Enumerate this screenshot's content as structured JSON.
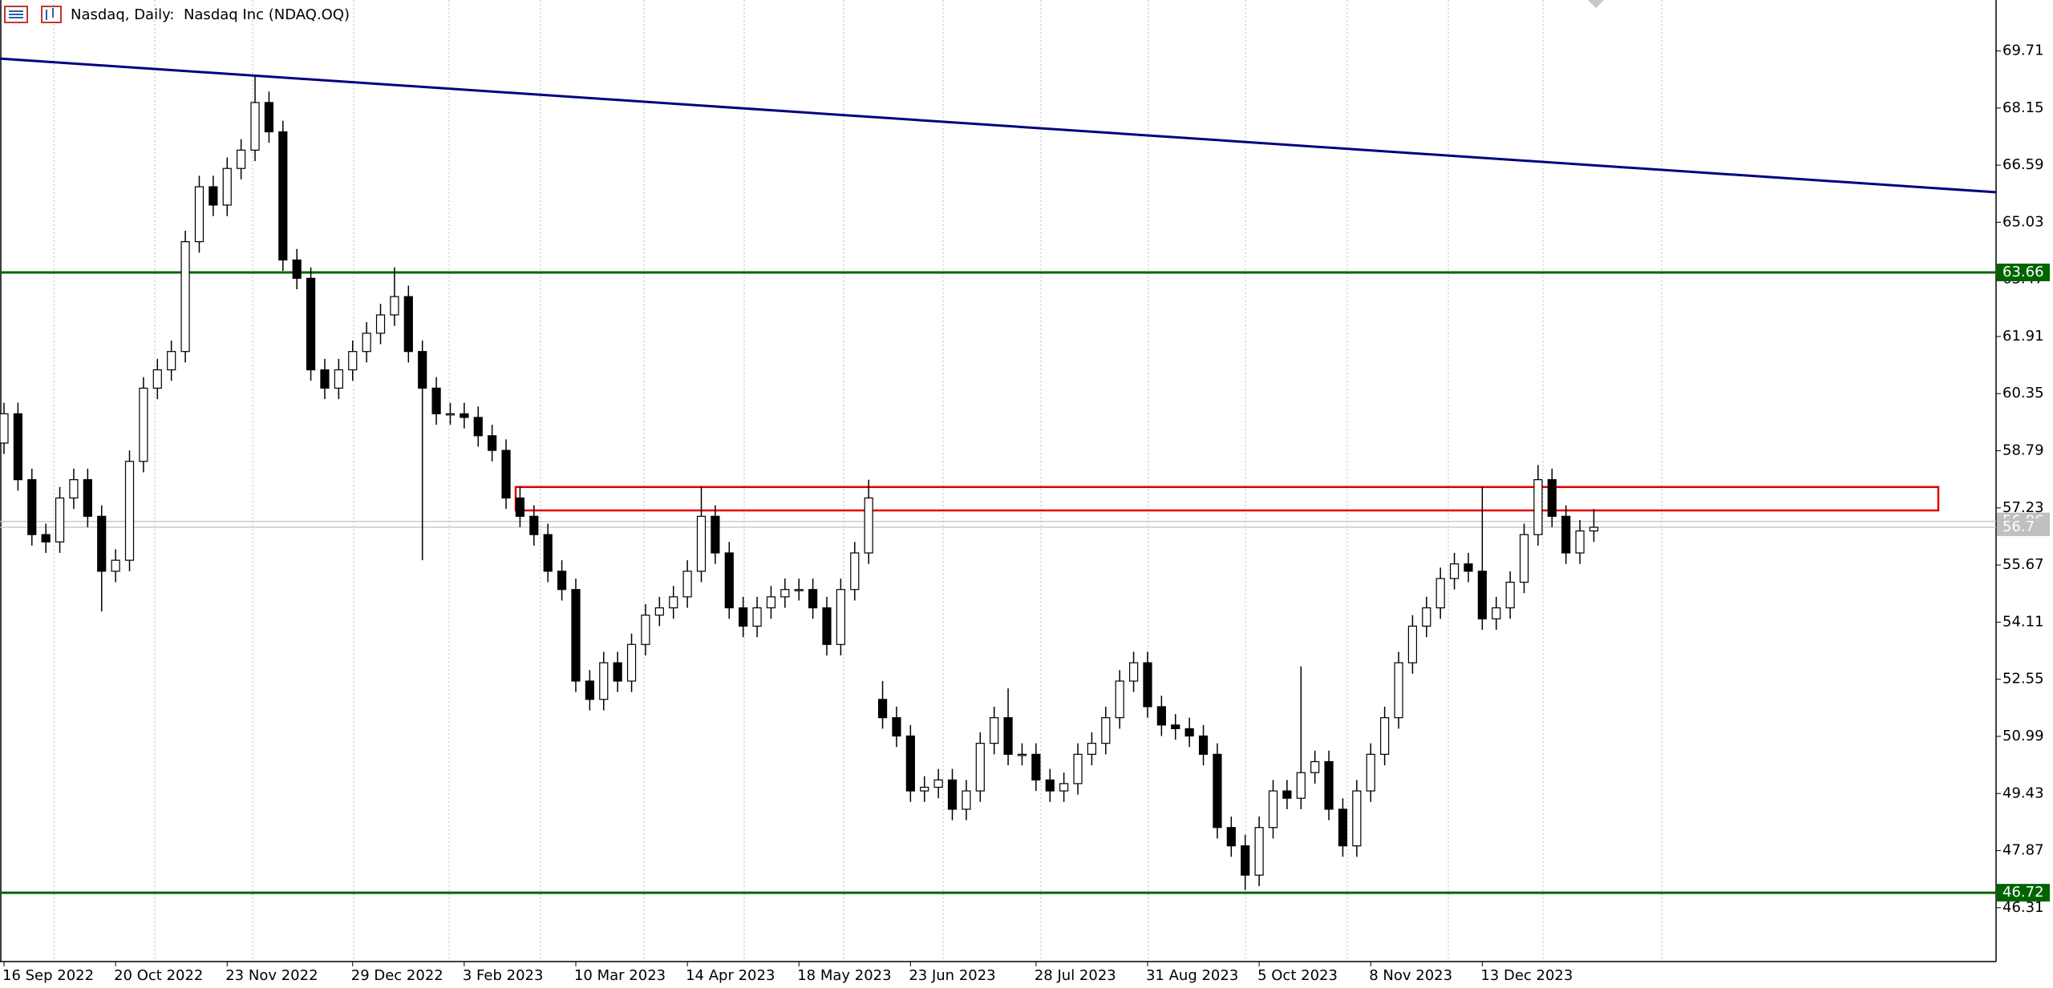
{
  "chart_data": {
    "type": "candlestick",
    "title": "Nasdaq, Daily:  Nasdaq Inc (NDAQ.OQ)",
    "categories": [
      "16 Sep 2022",
      null,
      null,
      null,
      null,
      null,
      null,
      null,
      "20 Oct 2022",
      null,
      null,
      null,
      null,
      null,
      null,
      null,
      "23 Nov 2022",
      null,
      null,
      null,
      null,
      null,
      null,
      null,
      null,
      "29 Dec 2022",
      null,
      null,
      null,
      null,
      null,
      null,
      null,
      "3 Feb 2023",
      null,
      null,
      null,
      null,
      null,
      null,
      null,
      "10 Mar 2023",
      null,
      null,
      null,
      null,
      null,
      null,
      null,
      "14 Apr 2023",
      null,
      null,
      null,
      null,
      null,
      null,
      null,
      "18 May 2023",
      null,
      null,
      null,
      null,
      null,
      null,
      null,
      "23 Jun 2023",
      null,
      null,
      null,
      null,
      null,
      null,
      null,
      null,
      "28 Jul 2023",
      null,
      null,
      null,
      null,
      null,
      null,
      null,
      "31 Aug 2023",
      null,
      null,
      null,
      null,
      null,
      null,
      null,
      "5 Oct 2023",
      null,
      null,
      null,
      null,
      null,
      null,
      null,
      "8 Nov 2023",
      null,
      null,
      null,
      null,
      null,
      null,
      null,
      "13 Dec 2023",
      null,
      null,
      null,
      null,
      null,
      null,
      null,
      null
    ],
    "open": [
      59.0,
      59.8,
      58.0,
      56.5,
      56.3,
      57.5,
      58.0,
      57.0,
      55.5,
      55.8,
      58.5,
      60.5,
      61.0,
      61.5,
      64.5,
      66.0,
      65.5,
      66.5,
      67.0,
      68.3,
      67.5,
      64.0,
      63.5,
      61.0,
      60.5,
      61.0,
      61.5,
      62.0,
      62.5,
      63.0,
      61.5,
      60.5,
      59.8,
      59.8,
      59.7,
      59.2,
      58.8,
      57.5,
      57.0,
      56.5,
      55.5,
      55.0,
      52.5,
      52.0,
      53.0,
      52.5,
      53.5,
      54.3,
      54.5,
      54.8,
      55.5,
      57.0,
      56.0,
      54.5,
      54.0,
      54.5,
      54.8,
      55.0,
      55.0,
      54.5,
      53.5,
      55.0,
      56.0,
      52.0,
      51.5,
      51.0,
      49.5,
      49.6,
      49.8,
      49.0,
      49.5,
      50.8,
      51.5,
      50.5,
      50.5,
      49.8,
      49.5,
      49.7,
      50.5,
      50.8,
      51.5,
      52.5,
      53.0,
      51.8,
      51.3,
      51.2,
      51.0,
      50.5,
      48.5,
      48.0,
      47.2,
      48.5,
      49.5,
      49.3,
      50.0,
      50.3,
      49.0,
      48.0,
      49.5,
      50.5,
      51.5,
      53.0,
      54.0,
      54.5,
      55.3,
      55.7,
      55.5,
      54.2,
      54.5,
      55.2,
      56.5,
      58.0,
      57.0,
      56.0,
      56.6
    ],
    "high": [
      60.1,
      60.1,
      58.3,
      56.8,
      57.8,
      58.3,
      58.3,
      57.3,
      56.1,
      58.8,
      60.8,
      61.3,
      61.8,
      64.8,
      66.3,
      66.3,
      66.8,
      67.3,
      69.0,
      68.6,
      67.8,
      64.3,
      63.8,
      61.3,
      61.3,
      61.8,
      62.3,
      62.8,
      63.8,
      63.3,
      61.8,
      60.8,
      60.1,
      60.1,
      60.0,
      59.5,
      59.1,
      57.8,
      57.3,
      56.8,
      55.8,
      55.3,
      52.8,
      53.3,
      53.3,
      53.8,
      54.6,
      54.8,
      55.1,
      55.8,
      57.8,
      57.3,
      56.3,
      54.8,
      54.8,
      55.1,
      55.3,
      55.3,
      55.3,
      54.8,
      55.3,
      56.3,
      58.0,
      52.5,
      51.8,
      51.3,
      49.9,
      50.1,
      50.1,
      49.8,
      51.1,
      51.8,
      52.3,
      50.8,
      50.8,
      50.1,
      50.0,
      50.8,
      51.1,
      51.8,
      52.8,
      53.3,
      53.3,
      52.1,
      51.6,
      51.5,
      51.3,
      50.8,
      48.8,
      48.3,
      48.8,
      49.8,
      49.8,
      52.9,
      50.6,
      50.6,
      49.3,
      49.8,
      50.8,
      51.8,
      53.3,
      54.3,
      54.8,
      55.6,
      56.0,
      56.0,
      57.8,
      54.8,
      55.5,
      56.8,
      58.4,
      58.3,
      57.3,
      56.9,
      57.2
    ],
    "low": [
      58.7,
      57.7,
      56.2,
      56.0,
      56.0,
      57.2,
      56.7,
      54.4,
      55.2,
      55.5,
      58.2,
      60.2,
      60.7,
      61.2,
      64.2,
      65.2,
      65.2,
      66.2,
      66.7,
      67.2,
      63.7,
      63.2,
      60.7,
      60.2,
      60.2,
      60.7,
      61.2,
      61.7,
      62.2,
      61.2,
      55.8,
      59.5,
      59.5,
      59.4,
      58.9,
      58.5,
      57.2,
      56.7,
      56.2,
      55.2,
      54.7,
      52.2,
      51.7,
      51.7,
      52.2,
      52.2,
      53.2,
      54.0,
      54.2,
      54.5,
      55.2,
      55.7,
      54.2,
      53.7,
      53.7,
      54.2,
      54.5,
      54.7,
      54.2,
      53.2,
      53.2,
      54.7,
      55.7,
      51.2,
      50.7,
      49.2,
      49.2,
      49.3,
      48.7,
      48.7,
      49.2,
      50.5,
      50.2,
      50.2,
      49.5,
      49.2,
      49.2,
      49.4,
      50.2,
      50.5,
      51.2,
      52.2,
      51.5,
      51.0,
      50.9,
      50.7,
      50.2,
      48.2,
      47.7,
      46.8,
      46.9,
      48.2,
      49.0,
      49.0,
      49.7,
      48.7,
      47.7,
      47.7,
      49.2,
      50.2,
      51.2,
      52.7,
      53.7,
      54.2,
      55.0,
      55.2,
      53.9,
      53.9,
      54.2,
      54.9,
      56.2,
      56.7,
      55.7,
      55.7,
      56.3
    ],
    "close": [
      59.8,
      58.0,
      56.5,
      56.3,
      57.5,
      58.0,
      57.0,
      55.5,
      55.8,
      58.5,
      60.5,
      61.0,
      61.5,
      64.5,
      66.0,
      65.5,
      66.5,
      67.0,
      68.3,
      67.5,
      64.0,
      63.5,
      61.0,
      60.5,
      61.0,
      61.5,
      62.0,
      62.5,
      63.0,
      61.5,
      60.5,
      59.8,
      59.8,
      59.7,
      59.2,
      58.8,
      57.5,
      57.0,
      56.5,
      55.5,
      55.0,
      52.5,
      52.0,
      53.0,
      52.5,
      53.5,
      54.3,
      54.5,
      54.8,
      55.5,
      57.0,
      56.0,
      54.5,
      54.0,
      54.5,
      54.8,
      55.0,
      55.0,
      54.5,
      53.5,
      55.0,
      56.0,
      57.5,
      51.5,
      51.0,
      49.5,
      49.6,
      49.8,
      49.0,
      49.5,
      50.8,
      51.5,
      50.5,
      50.5,
      49.8,
      49.5,
      49.7,
      50.5,
      50.8,
      51.5,
      52.5,
      53.0,
      51.8,
      51.3,
      51.2,
      51.0,
      50.5,
      48.5,
      48.0,
      47.2,
      48.5,
      49.5,
      49.3,
      50.0,
      50.3,
      49.0,
      48.0,
      49.5,
      50.5,
      51.5,
      53.0,
      54.0,
      54.5,
      55.3,
      55.7,
      55.5,
      54.2,
      54.5,
      55.2,
      56.5,
      58.0,
      57.0,
      56.0,
      56.6,
      56.7
    ],
    "up_color": "#ffffff",
    "down_color": "#000000",
    "wick_color": "#000000",
    "ylim": [
      44.84,
      71.1
    ],
    "yticks": [
      69.71,
      68.15,
      66.59,
      65.03,
      63.47,
      61.91,
      60.35,
      58.79,
      57.23,
      55.67,
      54.11,
      52.55,
      50.99,
      49.43,
      47.87,
      46.31
    ],
    "grid": true,
    "levels": [
      {
        "value": 63.66,
        "color": "#006400"
      },
      {
        "value": 46.72,
        "color": "#006400"
      }
    ],
    "price_lines": [
      {
        "value": 56.86,
        "color": "#c0c0c0"
      },
      {
        "value": 56.7,
        "color": "#c0c0c0"
      }
    ],
    "zone": {
      "low": 57.16,
      "high": 57.8,
      "color": "#e00000"
    },
    "trendline": {
      "start": 69.5,
      "end": 65.85,
      "color": "#00007f"
    }
  }
}
